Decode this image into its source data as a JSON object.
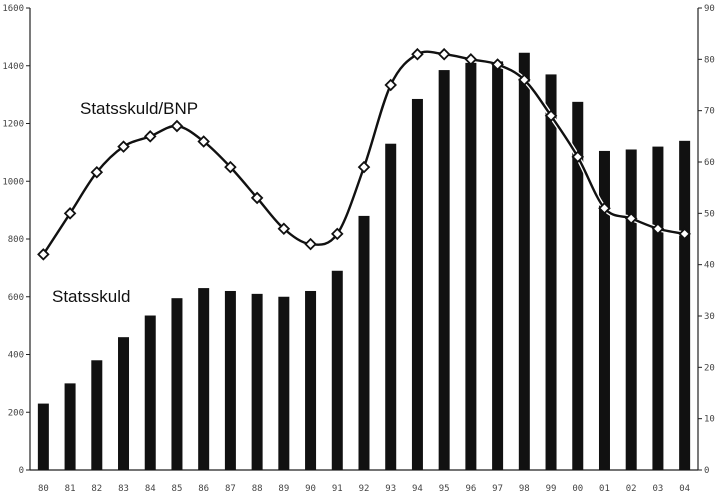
{
  "chart_data": {
    "type": "bar",
    "categories": [
      "80",
      "81",
      "82",
      "83",
      "84",
      "85",
      "86",
      "87",
      "88",
      "89",
      "90",
      "91",
      "92",
      "93",
      "94",
      "95",
      "96",
      "97",
      "98",
      "99",
      "00",
      "01",
      "02",
      "03",
      "04"
    ],
    "series": [
      {
        "name": "Statsskuld",
        "type": "bar",
        "axis": "left",
        "color": "#111111",
        "values": [
          230,
          300,
          380,
          460,
          535,
          595,
          630,
          620,
          610,
          600,
          620,
          690,
          880,
          1130,
          1285,
          1385,
          1410,
          1415,
          1445,
          1370,
          1275,
          1105,
          1110,
          1120,
          1140
        ]
      },
      {
        "name": "Statsskuld/BNP",
        "type": "line",
        "axis": "right",
        "color": "#111111",
        "marker": "diamond",
        "values": [
          42,
          50,
          58,
          63,
          65,
          67,
          64,
          59,
          53,
          47,
          44,
          46,
          59,
          75,
          81,
          81,
          80,
          79,
          76,
          69,
          61,
          51,
          49,
          47,
          46
        ]
      }
    ],
    "y_left": {
      "ylim": [
        0,
        1600
      ],
      "ticks": [
        "0",
        "200",
        "400",
        "600",
        "800",
        "1000",
        "1200",
        "1400",
        "1600"
      ]
    },
    "y_right": {
      "ylim": [
        0,
        90
      ],
      "ticks": [
        "0",
        "10",
        "20",
        "30",
        "40",
        "50",
        "60",
        "70",
        "80",
        "90"
      ]
    },
    "grid": false,
    "legend": "inline labels"
  }
}
